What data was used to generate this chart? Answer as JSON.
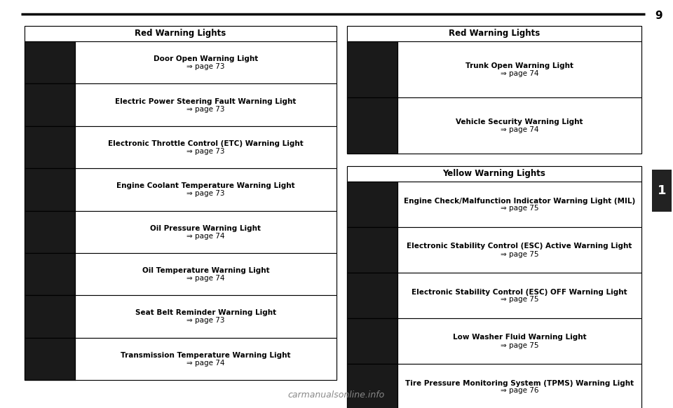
{
  "page_number": "9",
  "tab_label": "1",
  "background_color": "#ffffff",
  "header_line_color": "#000000",
  "table_border_color": "#000000",
  "header_fill_color": "#ffffff",
  "icon_fill_color": "#000000",
  "text_color": "#000000",
  "page_ref_color": "#000000",
  "left_table_title": "Red Warning Lights",
  "left_rows": [
    {
      "text": "Door Open Warning Light\n⇒ page 73"
    },
    {
      "text": "Electric Power Steering Fault Warning Light\n⇒ page 73"
    },
    {
      "text": "Electronic Throttle Control (ETC) Warning Light\n⇒ page 73"
    },
    {
      "text": "Engine Coolant Temperature Warning Light\n⇒ page 73"
    },
    {
      "text": "Oil Pressure Warning Light\n⇒ page 74"
    },
    {
      "text": "Oil Temperature Warning Light\n⇒ page 74"
    },
    {
      "text": "Seat Belt Reminder Warning Light\n⇒ page 73"
    },
    {
      "text": "Transmission Temperature Warning Light\n⇒ page 74"
    }
  ],
  "right_top_table_title": "Red Warning Lights",
  "right_top_rows": [
    {
      "text": "Trunk Open Warning Light\n⇒ page 74"
    },
    {
      "text": "Vehicle Security Warning Light\n⇒ page 74"
    }
  ],
  "right_bottom_table_title": "Yellow Warning Lights",
  "right_bottom_rows": [
    {
      "text": "Engine Check/Malfunction Indicator Warning Light (MIL)\n⇒ page 75"
    },
    {
      "text": "Electronic Stability Control (ESC) Active Warning Light\n⇒ page 75"
    },
    {
      "text": "Electronic Stability Control (ESC) OFF Warning Light\n⇒ page 75"
    },
    {
      "text": "Low Washer Fluid Warning Light\n⇒ page 75"
    },
    {
      "text": "Tire Pressure Monitoring System (TPMS) Warning Light\n⇒ page 76"
    }
  ]
}
